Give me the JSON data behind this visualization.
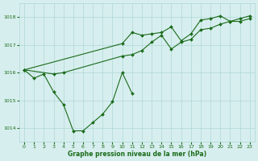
{
  "background_color": "#d7eeee",
  "grid_color": "#b0d8d8",
  "line_color": "#1a6b1a",
  "xlabel": "Graphe pression niveau de la mer (hPa)",
  "xlabel_color": "#1a6b1a",
  "yticks": [
    1014,
    1015,
    1016,
    1017,
    1018
  ],
  "xticks": [
    0,
    1,
    2,
    3,
    4,
    5,
    6,
    7,
    8,
    9,
    10,
    11,
    12,
    13,
    14,
    15,
    16,
    17,
    18,
    19,
    20,
    21,
    22,
    23
  ],
  "xlim": [
    -0.5,
    23.5
  ],
  "ylim": [
    1013.5,
    1018.5
  ],
  "line_A_x": [
    0,
    1,
    2,
    3,
    4,
    5,
    6,
    7,
    8,
    9,
    10,
    11
  ],
  "line_A_y": [
    1016.1,
    1015.8,
    1015.95,
    1015.3,
    1014.85,
    1013.9,
    1013.9,
    1014.2,
    1014.5,
    1014.95,
    1016.0,
    1015.25
  ],
  "line_B_x": [
    0,
    3,
    4,
    10,
    11,
    12,
    13,
    14,
    15,
    16,
    17,
    18,
    19,
    20,
    21,
    22,
    23
  ],
  "line_B_y": [
    1016.1,
    1015.95,
    1016.0,
    1016.6,
    1016.65,
    1016.8,
    1017.1,
    1017.35,
    1016.85,
    1017.1,
    1017.2,
    1017.55,
    1017.6,
    1017.75,
    1017.85,
    1017.85,
    1017.95
  ],
  "line_C_x": [
    0,
    10,
    11,
    12,
    13,
    14,
    15,
    16,
    17,
    18,
    19,
    20,
    21,
    22,
    23
  ],
  "line_C_y": [
    1016.1,
    1017.05,
    1017.45,
    1017.35,
    1017.4,
    1017.45,
    1017.65,
    1017.15,
    1017.4,
    1017.9,
    1017.95,
    1018.05,
    1017.85,
    1017.95,
    1018.05
  ]
}
